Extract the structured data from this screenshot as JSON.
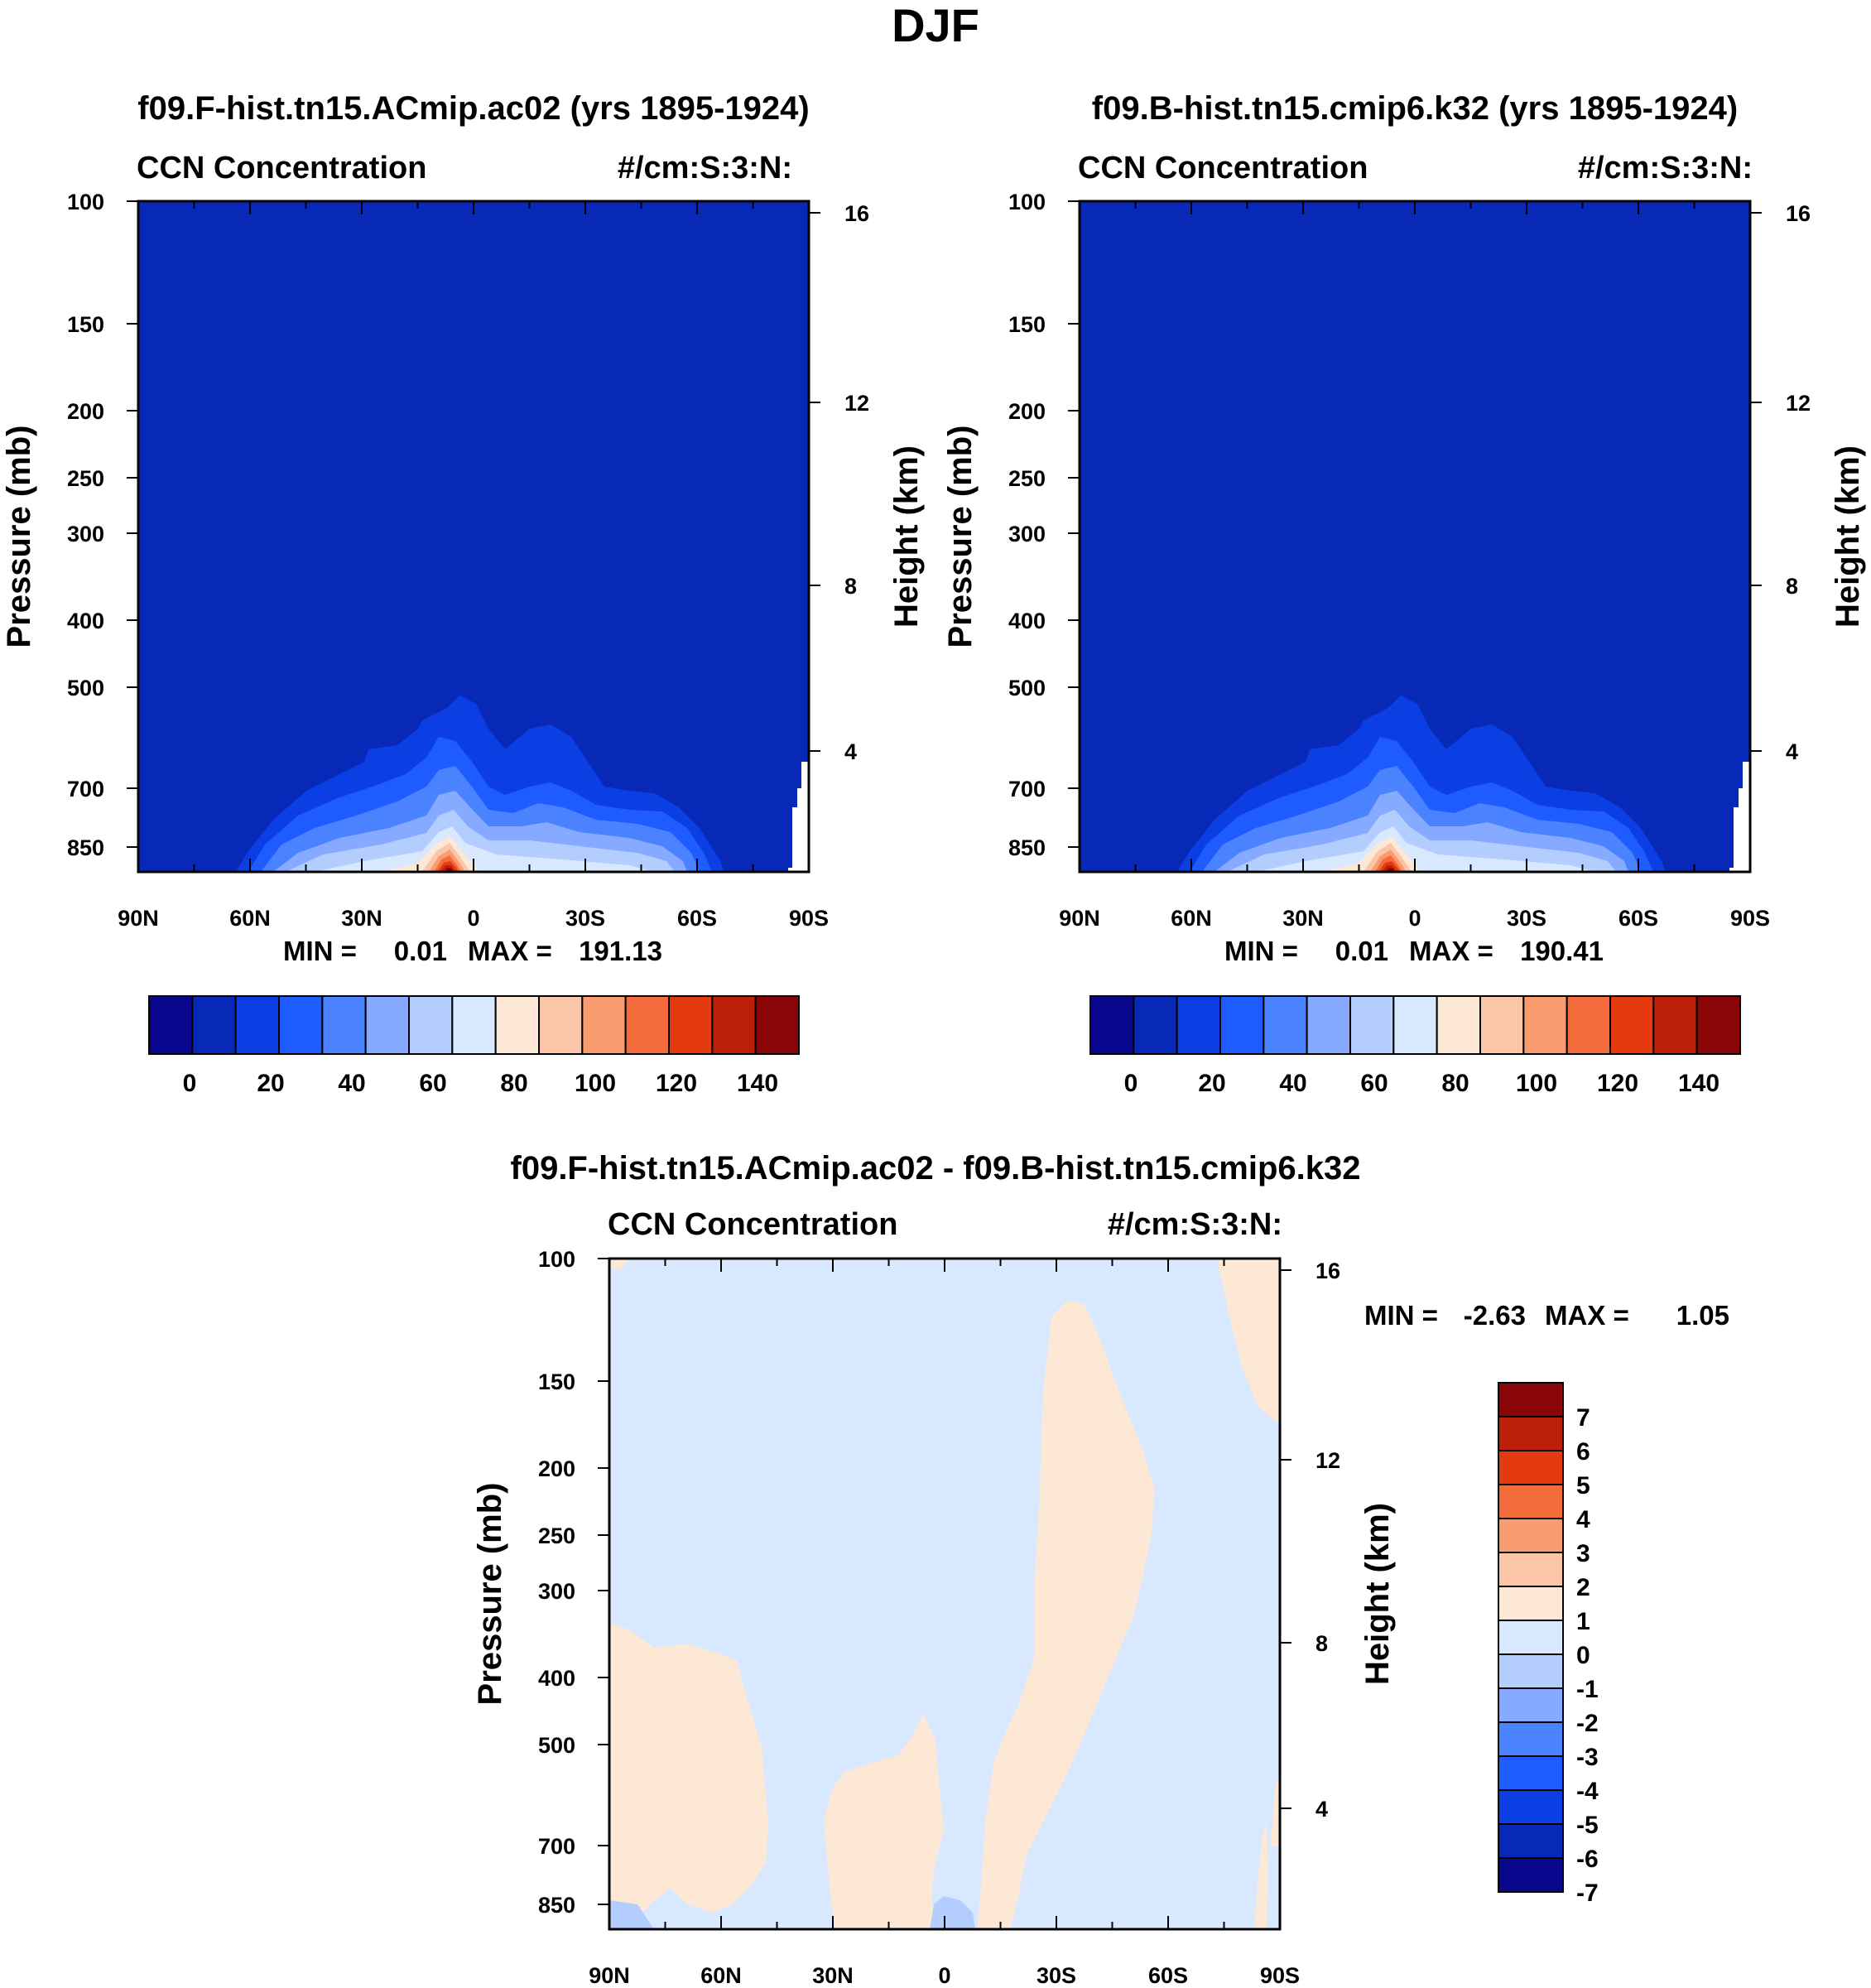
{
  "page": {
    "title": "DJF"
  },
  "chart_data": [
    {
      "id": "p1",
      "type": "contour",
      "title": "f09.F-hist.tn15.ACmip.ac02 (yrs 1895-1924)",
      "left_label": "CCN Concentration",
      "right_label": "#/cm:S:3:N:",
      "xlabel": "",
      "ylabel": "Pressure (mb)",
      "y2label": "Height (km)",
      "x_ticks": [
        "90N",
        "60N",
        "30N",
        "0",
        "30S",
        "60S",
        "90S"
      ],
      "y_ticks": [
        "100",
        "150",
        "200",
        "250",
        "300",
        "400",
        "500",
        "700",
        "850"
      ],
      "y2_ticks": [
        "16",
        "12",
        "8",
        "4"
      ],
      "min_label": "MIN =",
      "min_value": "0.01",
      "max_label": "MAX =",
      "max_value": "191.13",
      "colorbar_labels": [
        "0",
        "20",
        "40",
        "60",
        "80",
        "100",
        "120",
        "140"
      ],
      "colors": [
        "#08078e",
        "#0828b8",
        "#0c3fe3",
        "#1f5cff",
        "#4a82ff",
        "#86aaff",
        "#b4cdff",
        "#d8e8ff",
        "#fde8d6",
        "#fbc5a8",
        "#f99d70",
        "#f56c3c",
        "#e43a10",
        "#bc2008",
        "#8a0606"
      ],
      "peak_value": 191.13
    },
    {
      "id": "p2",
      "type": "contour",
      "title": "f09.B-hist.tn15.cmip6.k32 (yrs 1895-1924)",
      "left_label": "CCN Concentration",
      "right_label": "#/cm:S:3:N:",
      "xlabel": "",
      "ylabel": "Pressure (mb)",
      "y2label": "Height (km)",
      "x_ticks": [
        "90N",
        "60N",
        "30N",
        "0",
        "30S",
        "60S",
        "90S"
      ],
      "y_ticks": [
        "100",
        "150",
        "200",
        "250",
        "300",
        "400",
        "500",
        "700",
        "850"
      ],
      "y2_ticks": [
        "16",
        "12",
        "8",
        "4"
      ],
      "min_label": "MIN =",
      "min_value": "0.01",
      "max_label": "MAX =",
      "max_value": "190.41",
      "colorbar_labels": [
        "0",
        "20",
        "40",
        "60",
        "80",
        "100",
        "120",
        "140"
      ],
      "colors": [
        "#08078e",
        "#0828b8",
        "#0c3fe3",
        "#1f5cff",
        "#4a82ff",
        "#86aaff",
        "#b4cdff",
        "#d8e8ff",
        "#fde8d6",
        "#fbc5a8",
        "#f99d70",
        "#f56c3c",
        "#e43a10",
        "#bc2008",
        "#8a0606"
      ],
      "peak_value": 190.41
    },
    {
      "id": "p3",
      "type": "contour-difference",
      "title": "f09.F-hist.tn15.ACmip.ac02 - f09.B-hist.tn15.cmip6.k32",
      "left_label": "CCN Concentration",
      "right_label": "#/cm:S:3:N:",
      "ylabel": "Pressure (mb)",
      "y2label": "Height (km)",
      "x_ticks": [
        "90N",
        "60N",
        "30N",
        "0",
        "30S",
        "60S",
        "90S"
      ],
      "y_ticks": [
        "100",
        "150",
        "200",
        "250",
        "300",
        "400",
        "500",
        "700",
        "850"
      ],
      "y2_ticks": [
        "16",
        "12",
        "8",
        "4"
      ],
      "min_label": "MIN =",
      "min_value": "-2.63",
      "max_label": "MAX =",
      "max_value": "1.05",
      "colorbar_labels": [
        "7",
        "6",
        "5",
        "4",
        "3",
        "2",
        "1",
        "0",
        "-1",
        "-2",
        "-3",
        "-4",
        "-5",
        "-6",
        "-7"
      ],
      "colors": [
        "#8a0606",
        "#bc2008",
        "#e43a10",
        "#f56c3c",
        "#f99d70",
        "#fbc5a8",
        "#fde8d6",
        "#d8e8ff",
        "#b4cdff",
        "#86aaff",
        "#4a82ff",
        "#1f5cff",
        "#0c3fe3",
        "#0828b8",
        "#08078e"
      ]
    }
  ]
}
